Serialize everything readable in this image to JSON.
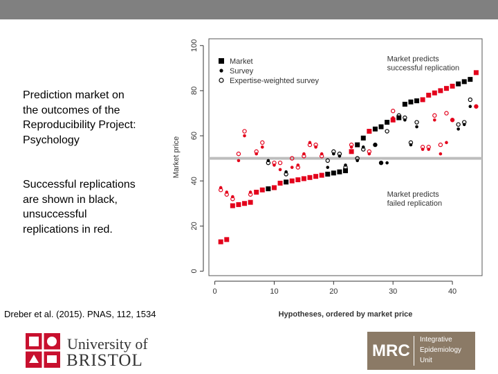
{
  "slide": {
    "description_1": [
      "Prediction market on",
      "the outcomes of the",
      "Reproducibility Project:",
      "Psychology"
    ],
    "description_2": [
      "Successful replications",
      "are shown in black,",
      "unsuccessful",
      "replications in red."
    ],
    "citation": "Dreber et al. (2015). PNAS, 112, 1534"
  },
  "logos": {
    "bristol_line1": "University of",
    "bristol_line2": "BRISTOL",
    "mrc": "MRC",
    "mrc_unit": [
      "Integrative",
      "Epidemiology",
      "Unit"
    ]
  },
  "colors": {
    "success": "#000000",
    "failure": "#e3001b",
    "threshold": "#bdbdbd",
    "topbar": "#808080",
    "mrc": "#8b7a66"
  },
  "chart_data": {
    "type": "scatter",
    "xlabel": "Hypotheses, ordered by market price",
    "ylabel": "Market price",
    "xlim": [
      -1,
      45
    ],
    "ylim": [
      -2,
      103
    ],
    "xticks": [
      0,
      10,
      20,
      30,
      40
    ],
    "yticks": [
      0,
      20,
      40,
      60,
      80,
      100
    ],
    "threshold": 50,
    "annotations": [
      {
        "lines": [
          "Market predicts",
          "successful replication"
        ],
        "x": 29,
        "y": 93
      },
      {
        "lines": [
          "Market predicts",
          "failed replication"
        ],
        "x": 29,
        "y": 33
      }
    ],
    "legend": [
      "Market",
      "Survey",
      "Expertise-weighted survey"
    ],
    "series": [
      {
        "name": "Market",
        "values": [
          13,
          14,
          29,
          29.5,
          30,
          30.5,
          35,
          36,
          36.5,
          37,
          39,
          39.5,
          40,
          40.5,
          41,
          41.5,
          42,
          42.5,
          43,
          43.5,
          44,
          44.5,
          53,
          56,
          59,
          62,
          63,
          64,
          66,
          67,
          68,
          74,
          75,
          75.5,
          76,
          78,
          79,
          80,
          81,
          82,
          83,
          84,
          85,
          88
        ]
      },
      {
        "name": "Survey",
        "values": [
          37,
          35,
          33,
          49,
          60,
          35,
          52,
          55,
          49,
          47,
          45,
          44,
          46,
          47,
          52,
          57,
          55,
          52,
          46,
          52,
          51,
          47,
          55,
          49,
          55,
          52,
          56,
          48,
          48,
          68,
          68,
          67,
          56,
          64,
          54,
          54,
          67,
          52,
          57,
          67,
          63,
          65,
          73,
          73
        ]
      },
      {
        "name": "Expertise-weighted survey",
        "values": [
          36,
          34,
          32,
          52,
          62,
          34,
          53,
          57,
          48,
          48,
          48,
          43,
          50,
          46,
          51,
          56,
          56,
          51,
          49,
          53,
          52,
          46,
          56,
          50,
          54,
          53,
          56,
          48,
          62,
          71,
          69,
          68,
          57,
          66,
          55,
          55,
          69,
          56,
          70,
          67,
          65,
          66,
          76,
          73
        ]
      }
    ],
    "replicated": [
      false,
      false,
      false,
      false,
      false,
      false,
      false,
      false,
      true,
      false,
      false,
      true,
      false,
      false,
      false,
      false,
      false,
      false,
      true,
      true,
      true,
      true,
      false,
      true,
      true,
      false,
      true,
      true,
      true,
      false,
      true,
      true,
      true,
      true,
      false,
      false,
      false,
      false,
      false,
      false,
      true,
      true,
      true,
      false
    ]
  }
}
